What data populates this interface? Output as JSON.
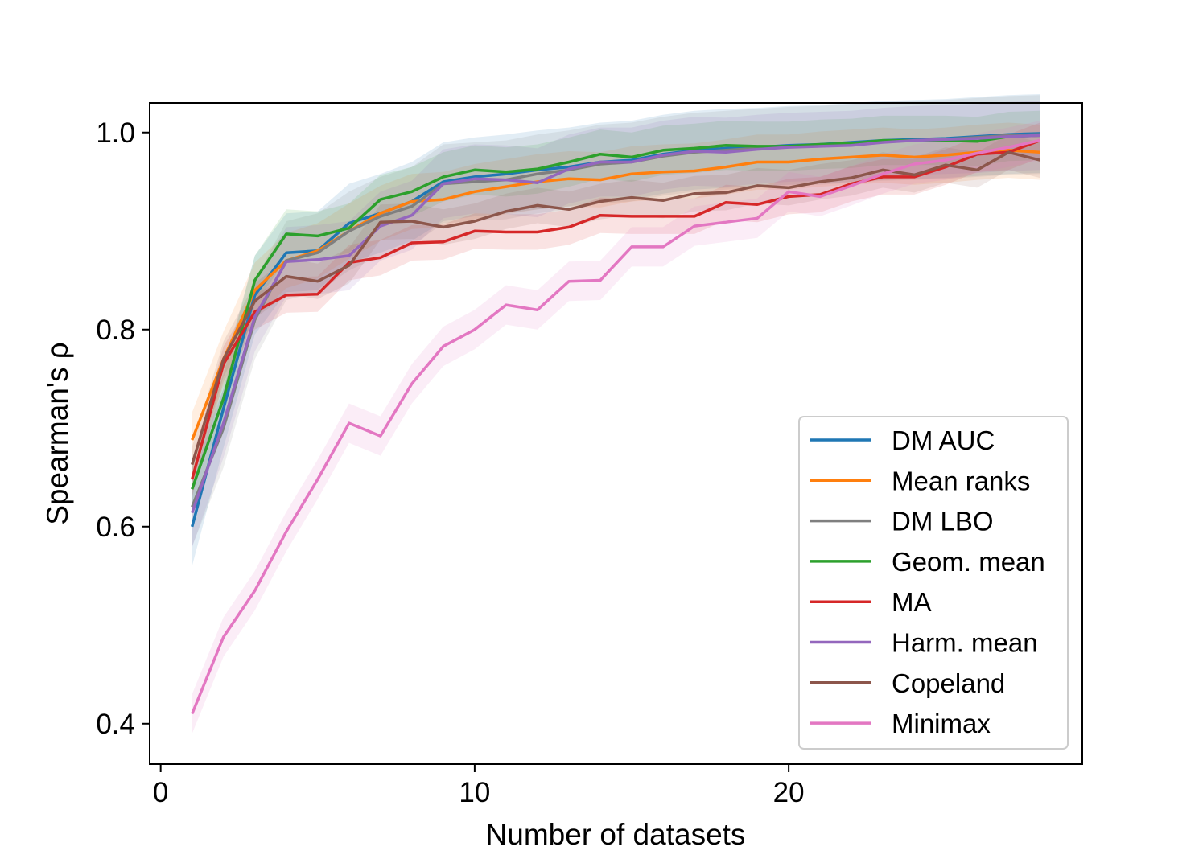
{
  "chart_data": {
    "type": "line",
    "title": "",
    "xlabel": "Number of datasets",
    "ylabel": "Spearman's ρ",
    "xlim": [
      -0.35,
      29.35
    ],
    "ylim": [
      0.359,
      1.03
    ],
    "xticks": [
      0,
      10,
      20
    ],
    "xtick_labels": [
      "0",
      "10",
      "20"
    ],
    "yticks": [
      0.4,
      0.6,
      0.8,
      1.0
    ],
    "ytick_labels": [
      "0.4",
      "0.6",
      "0.8",
      "1.0"
    ],
    "grid": false,
    "legend_position": "lower right",
    "x": [
      1,
      2,
      3,
      4,
      5,
      6,
      7,
      8,
      9,
      10,
      11,
      12,
      13,
      14,
      15,
      16,
      17,
      18,
      19,
      20,
      21,
      22,
      23,
      24,
      25,
      26,
      27,
      28
    ],
    "series": [
      {
        "name": "DM AUC",
        "color": "#1f77b4",
        "band": 0.04,
        "values": [
          0.6,
          0.72,
          0.835,
          0.878,
          0.88,
          0.908,
          0.918,
          0.93,
          0.95,
          0.955,
          0.958,
          0.962,
          0.965,
          0.97,
          0.972,
          0.978,
          0.982,
          0.984,
          0.985,
          0.987,
          0.988,
          0.99,
          0.992,
          0.993,
          0.994,
          0.996,
          0.998,
          0.999
        ]
      },
      {
        "name": "Mean ranks",
        "color": "#ff7f0e",
        "band": 0.028,
        "values": [
          0.688,
          0.77,
          0.84,
          0.87,
          0.88,
          0.9,
          0.918,
          0.93,
          0.932,
          0.94,
          0.945,
          0.95,
          0.953,
          0.952,
          0.958,
          0.96,
          0.961,
          0.965,
          0.97,
          0.97,
          0.973,
          0.975,
          0.977,
          0.975,
          0.977,
          0.98,
          0.982,
          0.98
        ]
      },
      {
        "name": "DM LBO",
        "color": "#7f7f7f",
        "band": 0.04,
        "values": [
          0.62,
          0.7,
          0.81,
          0.87,
          0.878,
          0.9,
          0.915,
          0.925,
          0.948,
          0.95,
          0.952,
          0.958,
          0.962,
          0.968,
          0.97,
          0.976,
          0.98,
          0.982,
          0.984,
          0.986,
          0.987,
          0.989,
          0.991,
          0.992,
          0.993,
          0.995,
          0.997,
          0.998
        ]
      },
      {
        "name": "Geom. mean",
        "color": "#2ca02c",
        "band": 0.025,
        "values": [
          0.638,
          0.73,
          0.85,
          0.897,
          0.895,
          0.903,
          0.932,
          0.94,
          0.955,
          0.962,
          0.96,
          0.963,
          0.97,
          0.978,
          0.975,
          0.982,
          0.984,
          0.987,
          0.986,
          0.986,
          0.988,
          0.989,
          0.992,
          0.992,
          0.992,
          0.991,
          0.996,
          0.997
        ]
      },
      {
        "name": "MA",
        "color": "#d62728",
        "band": 0.018,
        "values": [
          0.648,
          0.765,
          0.818,
          0.835,
          0.836,
          0.868,
          0.873,
          0.888,
          0.889,
          0.9,
          0.899,
          0.899,
          0.904,
          0.916,
          0.915,
          0.915,
          0.915,
          0.929,
          0.927,
          0.935,
          0.937,
          0.948,
          0.955,
          0.955,
          0.965,
          0.978,
          0.98,
          0.992
        ]
      },
      {
        "name": "Harm. mean",
        "color": "#9467bd",
        "band": 0.035,
        "values": [
          0.614,
          0.705,
          0.813,
          0.869,
          0.871,
          0.875,
          0.905,
          0.916,
          0.948,
          0.953,
          0.952,
          0.949,
          0.963,
          0.97,
          0.97,
          0.977,
          0.981,
          0.98,
          0.983,
          0.985,
          0.986,
          0.987,
          0.99,
          0.992,
          0.993,
          0.994,
          0.996,
          0.997
        ]
      },
      {
        "name": "Copeland",
        "color": "#8c564b",
        "band": 0.018,
        "values": [
          0.663,
          0.77,
          0.829,
          0.854,
          0.849,
          0.865,
          0.909,
          0.91,
          0.904,
          0.91,
          0.92,
          0.926,
          0.922,
          0.93,
          0.934,
          0.931,
          0.938,
          0.939,
          0.946,
          0.944,
          0.95,
          0.954,
          0.962,
          0.957,
          0.967,
          0.962,
          0.98,
          0.972
        ]
      },
      {
        "name": "Minimax",
        "color": "#e377c2",
        "band": 0.02,
        "values": [
          0.41,
          0.488,
          0.535,
          0.595,
          0.648,
          0.705,
          0.692,
          0.745,
          0.783,
          0.8,
          0.825,
          0.82,
          0.849,
          0.85,
          0.884,
          0.884,
          0.905,
          0.909,
          0.913,
          0.94,
          0.935,
          0.946,
          0.958,
          0.968,
          0.972,
          0.979,
          0.985,
          0.992
        ]
      }
    ]
  }
}
